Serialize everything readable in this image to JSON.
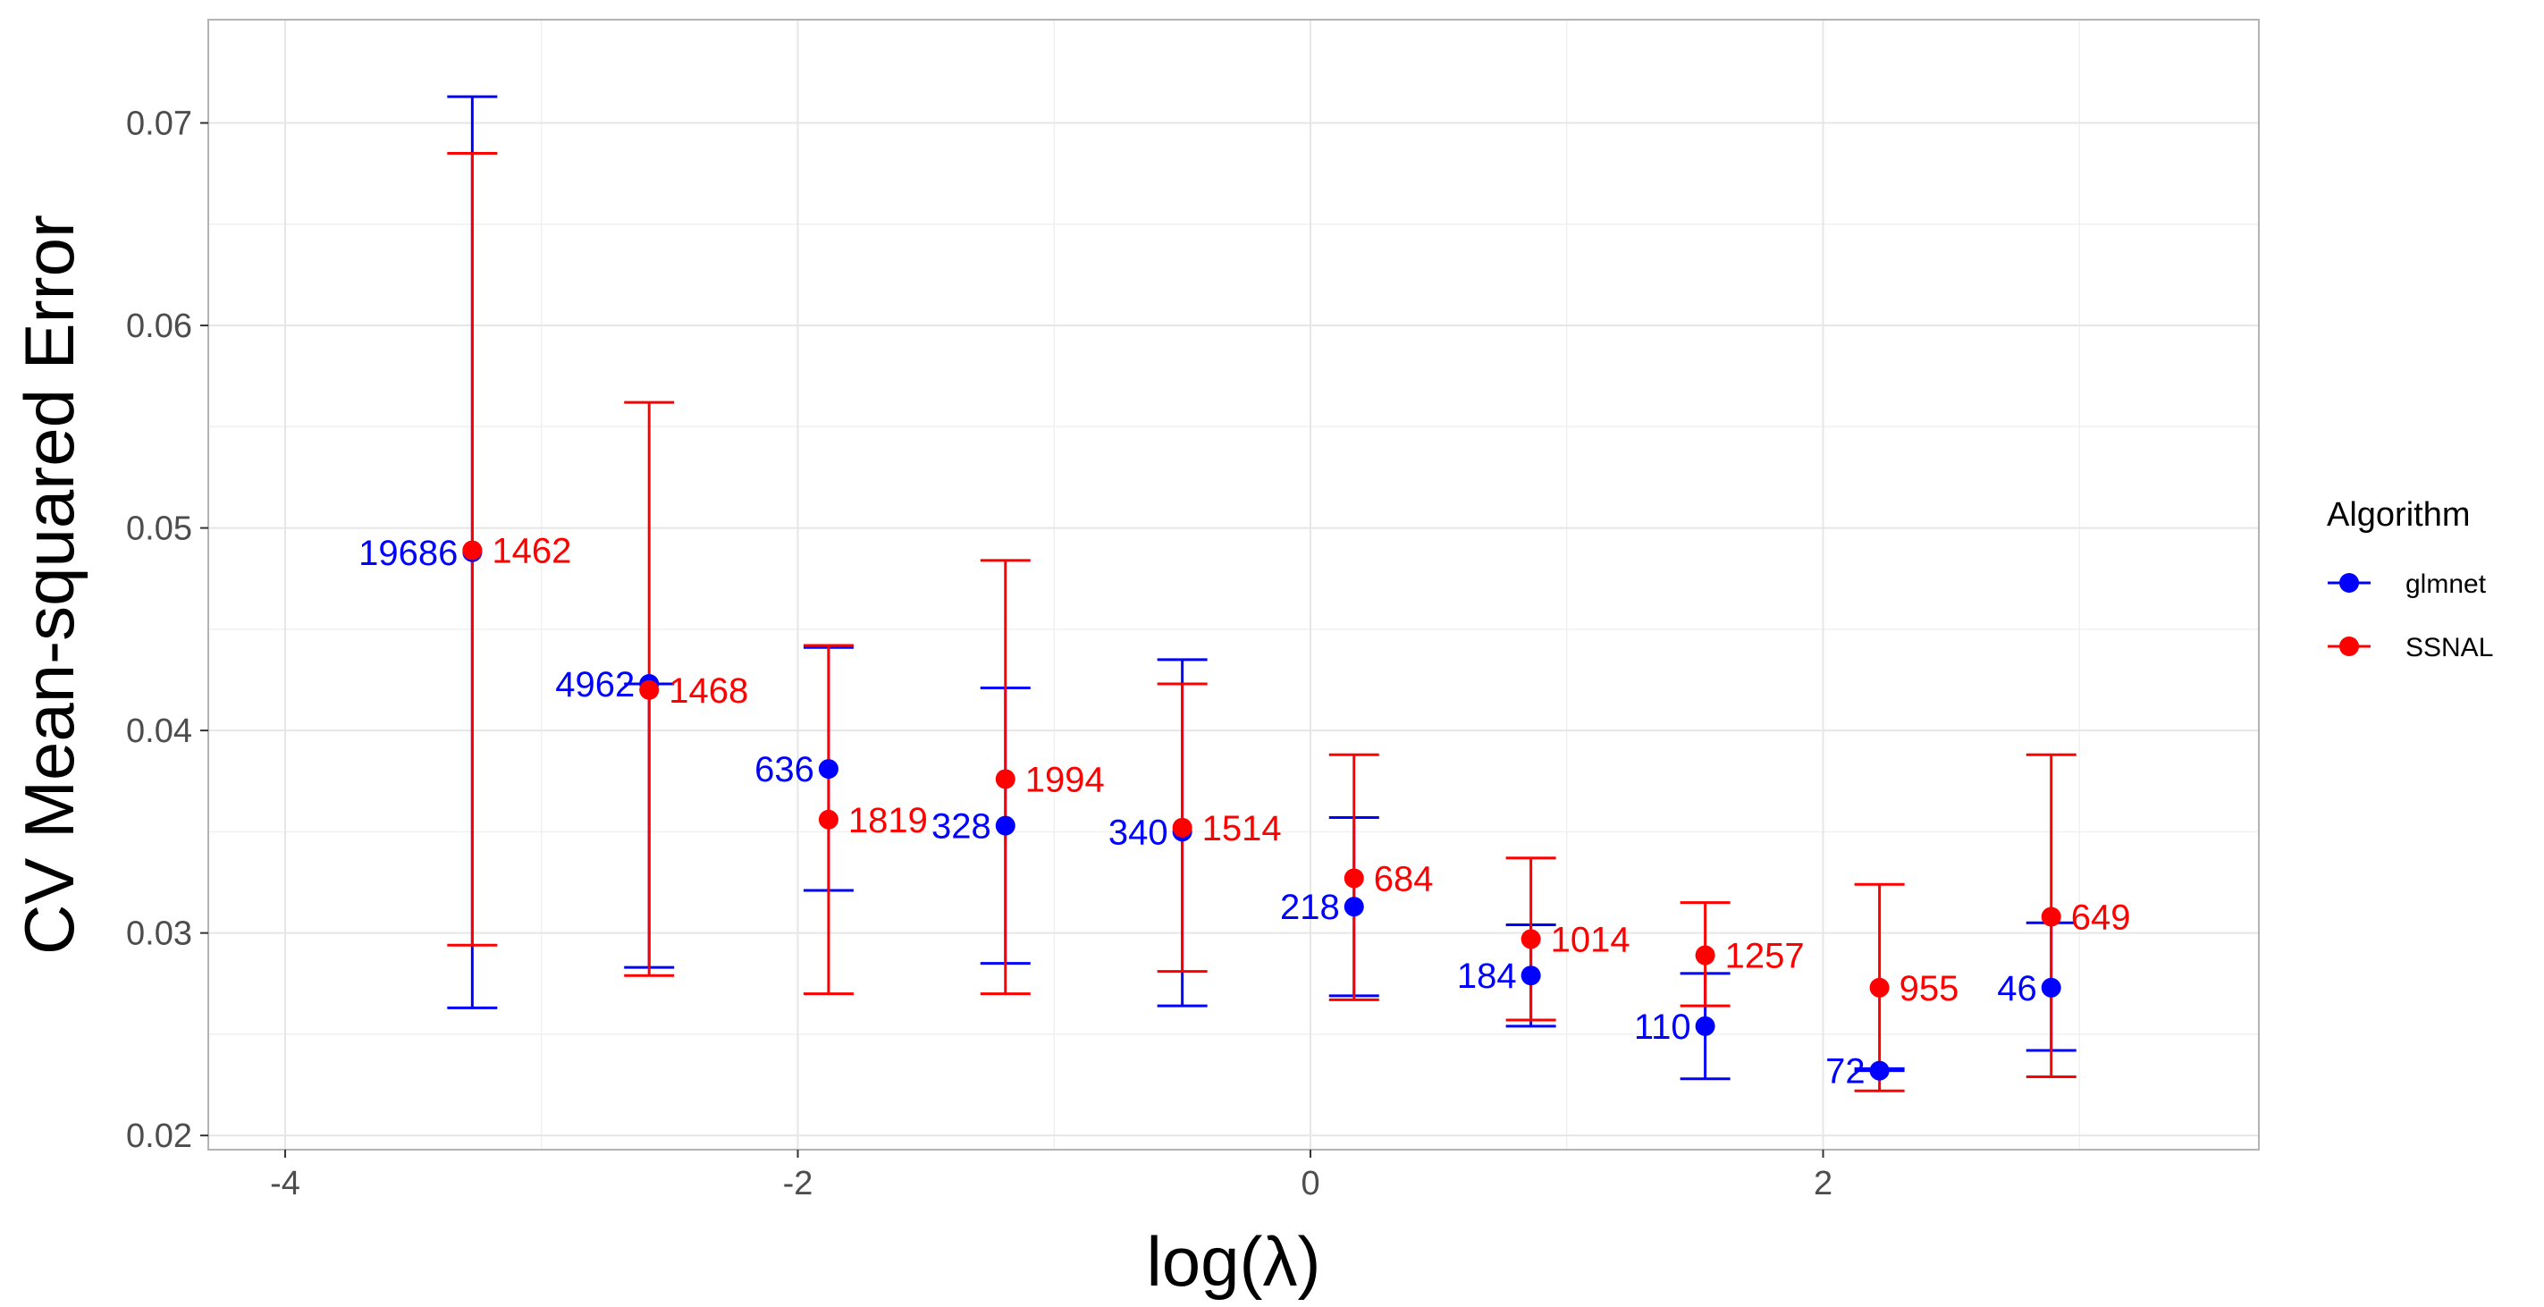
{
  "chart_data": {
    "type": "scatter",
    "xlabel": "log(λ)",
    "ylabel": "CV Mean-squared Error",
    "xlim": [
      -4.3,
      3.7
    ],
    "ylim": [
      0.0193,
      0.0751
    ],
    "x_ticks": [
      -4,
      -2,
      0,
      2
    ],
    "x_tick_labels": [
      "-4",
      "-2",
      "0",
      "2"
    ],
    "y_ticks": [
      0.02,
      0.03,
      0.04,
      0.05,
      0.06,
      0.07
    ],
    "y_tick_labels": [
      "0.02",
      "0.03",
      "0.04",
      "0.05",
      "0.06",
      "0.07"
    ],
    "grid": true,
    "legend": {
      "title": "Algorithm",
      "position": "right",
      "entries": [
        {
          "label": "glmnet",
          "color": "#0000FF"
        },
        {
          "label": "SSNAL",
          "color": "#FF0000"
        }
      ]
    },
    "series": [
      {
        "name": "glmnet",
        "color": "#0000FF",
        "points": [
          {
            "x": -3.27,
            "y": 0.0488,
            "ymin": 0.0263,
            "ymax": 0.0713,
            "label": "19686"
          },
          {
            "x": -2.58,
            "y": 0.0423,
            "ymin": 0.0283,
            "ymax": 0.0423,
            "label": "4962"
          },
          {
            "x": -1.88,
            "y": 0.0381,
            "ymin": 0.0321,
            "ymax": 0.0441,
            "label": "636"
          },
          {
            "x": -1.19,
            "y": 0.0353,
            "ymin": 0.0285,
            "ymax": 0.0421,
            "label": "328"
          },
          {
            "x": -0.5,
            "y": 0.035,
            "ymin": 0.0264,
            "ymax": 0.0435,
            "label": "340"
          },
          {
            "x": 0.17,
            "y": 0.0313,
            "ymin": 0.0269,
            "ymax": 0.0357,
            "label": "218"
          },
          {
            "x": 0.86,
            "y": 0.0279,
            "ymin": 0.0254,
            "ymax": 0.0304,
            "label": "184"
          },
          {
            "x": 1.54,
            "y": 0.0254,
            "ymin": 0.0228,
            "ymax": 0.028,
            "label": "110"
          },
          {
            "x": 2.22,
            "y": 0.0232,
            "ymin": 0.0232,
            "ymax": 0.0233,
            "label": "72"
          },
          {
            "x": 2.89,
            "y": 0.0273,
            "ymin": 0.0242,
            "ymax": 0.0305,
            "label": "46"
          }
        ]
      },
      {
        "name": "SSNAL",
        "color": "#FF0000",
        "points": [
          {
            "x": -3.27,
            "y": 0.0489,
            "ymin": 0.0294,
            "ymax": 0.0685,
            "label": "1462"
          },
          {
            "x": -2.58,
            "y": 0.042,
            "ymin": 0.0279,
            "ymax": 0.0562,
            "label": "1468"
          },
          {
            "x": -1.88,
            "y": 0.0356,
            "ymin": 0.027,
            "ymax": 0.0442,
            "label": "1819"
          },
          {
            "x": -1.19,
            "y": 0.0376,
            "ymin": 0.027,
            "ymax": 0.0484,
            "label": "1994"
          },
          {
            "x": -0.5,
            "y": 0.0352,
            "ymin": 0.0281,
            "ymax": 0.0423,
            "label": "1514"
          },
          {
            "x": 0.17,
            "y": 0.0327,
            "ymin": 0.0267,
            "ymax": 0.0388,
            "label": "684"
          },
          {
            "x": 0.86,
            "y": 0.0297,
            "ymin": 0.0257,
            "ymax": 0.0337,
            "label": "1014"
          },
          {
            "x": 1.54,
            "y": 0.0289,
            "ymin": 0.0264,
            "ymax": 0.0315,
            "label": "1257"
          },
          {
            "x": 2.22,
            "y": 0.0273,
            "ymin": 0.0222,
            "ymax": 0.0324,
            "label": "955"
          },
          {
            "x": 2.89,
            "y": 0.0308,
            "ymin": 0.0229,
            "ymax": 0.0388,
            "label": "649"
          }
        ]
      }
    ]
  }
}
